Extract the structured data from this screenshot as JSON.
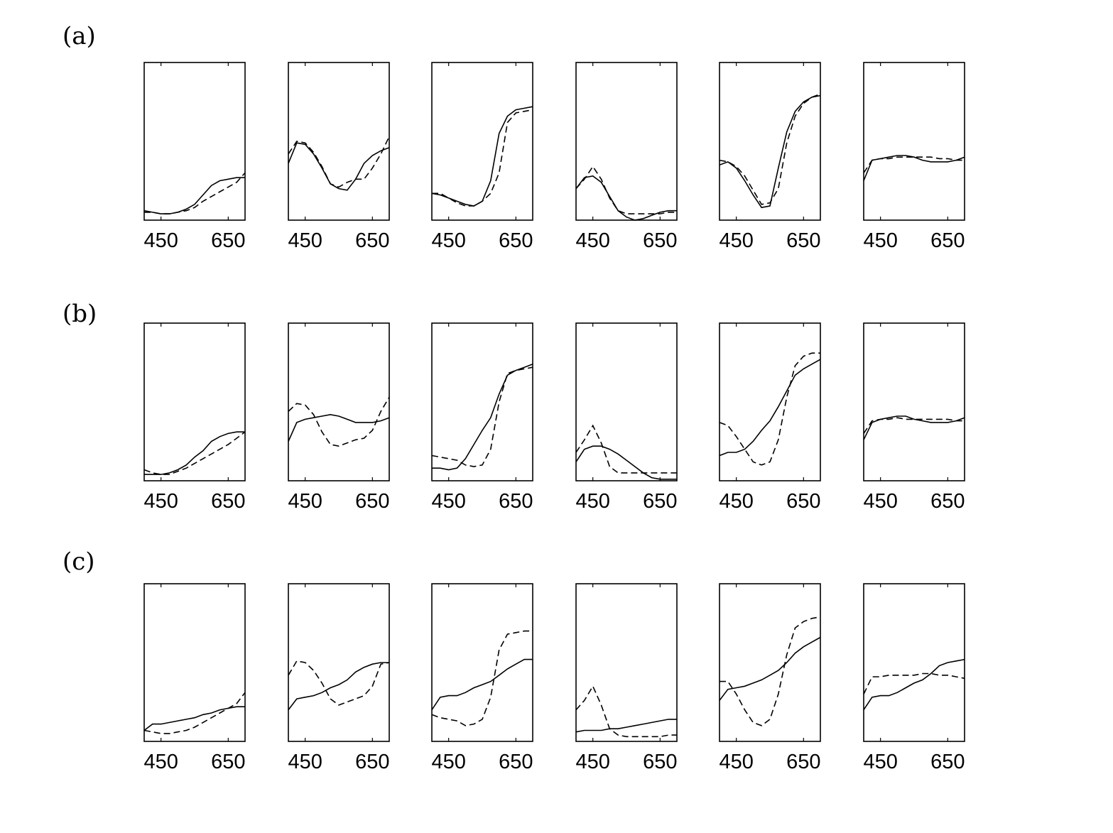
{
  "panel_labels": [
    "(a)",
    "(b)",
    "(c)"
  ],
  "chart_data": [
    {
      "type": "line",
      "x": [
        400,
        425,
        450,
        475,
        500,
        525,
        550,
        575,
        600,
        625,
        650,
        675,
        700
      ],
      "xlim": [
        400,
        700
      ],
      "ylim": [
        0,
        1
      ],
      "xticks": [
        450,
        650
      ],
      "series": [
        {
          "color": "#000",
          "dash": "solid",
          "values": [
            0.06,
            0.05,
            0.04,
            0.04,
            0.05,
            0.07,
            0.1,
            0.16,
            0.22,
            0.25,
            0.26,
            0.27,
            0.27
          ]
        },
        {
          "color": "#000",
          "dash": "dashed",
          "values": [
            0.05,
            0.05,
            0.04,
            0.04,
            0.05,
            0.06,
            0.08,
            0.12,
            0.15,
            0.18,
            0.21,
            0.24,
            0.3
          ]
        }
      ]
    },
    {
      "type": "line",
      "x": [
        400,
        425,
        450,
        475,
        500,
        525,
        550,
        575,
        600,
        625,
        650,
        675,
        700
      ],
      "xlim": [
        400,
        700
      ],
      "ylim": [
        0,
        1
      ],
      "xticks": [
        450,
        650
      ],
      "series": [
        {
          "color": "#000",
          "dash": "solid",
          "values": [
            0.36,
            0.49,
            0.48,
            0.42,
            0.33,
            0.23,
            0.2,
            0.19,
            0.26,
            0.36,
            0.41,
            0.44,
            0.46
          ]
        },
        {
          "color": "#000",
          "dash": "dashed",
          "values": [
            0.42,
            0.5,
            0.49,
            0.43,
            0.34,
            0.23,
            0.21,
            0.24,
            0.26,
            0.26,
            0.33,
            0.42,
            0.53
          ]
        }
      ]
    },
    {
      "type": "line",
      "x": [
        400,
        425,
        450,
        475,
        500,
        525,
        550,
        575,
        600,
        625,
        650,
        675,
        700
      ],
      "xlim": [
        400,
        700
      ],
      "ylim": [
        0,
        1
      ],
      "xticks": [
        450,
        650
      ],
      "series": [
        {
          "color": "#000",
          "dash": "solid",
          "values": [
            0.17,
            0.16,
            0.14,
            0.12,
            0.1,
            0.09,
            0.12,
            0.25,
            0.55,
            0.66,
            0.7,
            0.71,
            0.72
          ]
        },
        {
          "color": "#000",
          "dash": "dashed",
          "values": [
            0.17,
            0.17,
            0.14,
            0.11,
            0.09,
            0.09,
            0.12,
            0.17,
            0.3,
            0.62,
            0.68,
            0.69,
            0.7
          ]
        }
      ]
    },
    {
      "type": "line",
      "x": [
        400,
        425,
        450,
        475,
        500,
        525,
        550,
        575,
        600,
        625,
        650,
        675,
        700
      ],
      "xlim": [
        400,
        700
      ],
      "ylim": [
        0,
        1
      ],
      "xticks": [
        450,
        650
      ],
      "series": [
        {
          "color": "#000",
          "dash": "solid",
          "values": [
            0.2,
            0.27,
            0.28,
            0.24,
            0.15,
            0.06,
            0.02,
            0.0,
            0.01,
            0.03,
            0.05,
            0.06,
            0.06
          ]
        },
        {
          "color": "#000",
          "dash": "dashed",
          "values": [
            0.2,
            0.26,
            0.34,
            0.26,
            0.14,
            0.06,
            0.04,
            0.04,
            0.04,
            0.04,
            0.04,
            0.05,
            0.05
          ]
        }
      ]
    },
    {
      "type": "line",
      "x": [
        400,
        425,
        450,
        475,
        500,
        525,
        550,
        575,
        600,
        625,
        650,
        675,
        700
      ],
      "xlim": [
        400,
        700
      ],
      "ylim": [
        0,
        1
      ],
      "xticks": [
        450,
        650
      ],
      "series": [
        {
          "color": "#000",
          "dash": "solid",
          "values": [
            0.35,
            0.37,
            0.33,
            0.25,
            0.16,
            0.08,
            0.09,
            0.33,
            0.56,
            0.69,
            0.75,
            0.78,
            0.79
          ]
        },
        {
          "color": "#000",
          "dash": "dashed",
          "values": [
            0.38,
            0.37,
            0.34,
            0.28,
            0.19,
            0.1,
            0.11,
            0.2,
            0.49,
            0.66,
            0.74,
            0.78,
            0.8
          ]
        }
      ]
    },
    {
      "type": "line",
      "x": [
        400,
        425,
        450,
        475,
        500,
        525,
        550,
        575,
        600,
        625,
        650,
        675,
        700
      ],
      "xlim": [
        400,
        700
      ],
      "ylim": [
        0,
        1
      ],
      "xticks": [
        450,
        650
      ],
      "series": [
        {
          "color": "#000",
          "dash": "solid",
          "values": [
            0.25,
            0.38,
            0.39,
            0.4,
            0.41,
            0.41,
            0.4,
            0.38,
            0.37,
            0.37,
            0.37,
            0.38,
            0.4
          ]
        },
        {
          "color": "#000",
          "dash": "dashed",
          "values": [
            0.3,
            0.38,
            0.39,
            0.39,
            0.4,
            0.4,
            0.4,
            0.4,
            0.4,
            0.39,
            0.39,
            0.38,
            0.38
          ]
        }
      ]
    },
    {
      "type": "line",
      "x": [
        400,
        425,
        450,
        475,
        500,
        525,
        550,
        575,
        600,
        625,
        650,
        675,
        700
      ],
      "xlim": [
        400,
        700
      ],
      "ylim": [
        0,
        1
      ],
      "xticks": [
        450,
        650
      ],
      "series": [
        {
          "color": "#000",
          "dash": "solid",
          "values": [
            0.04,
            0.04,
            0.04,
            0.05,
            0.07,
            0.1,
            0.15,
            0.19,
            0.25,
            0.28,
            0.3,
            0.31,
            0.31
          ]
        },
        {
          "color": "#000",
          "dash": "dashed",
          "values": [
            0.07,
            0.05,
            0.04,
            0.04,
            0.06,
            0.08,
            0.11,
            0.14,
            0.17,
            0.2,
            0.23,
            0.27,
            0.31
          ]
        }
      ]
    },
    {
      "type": "line",
      "x": [
        400,
        425,
        450,
        475,
        500,
        525,
        550,
        575,
        600,
        625,
        650,
        675,
        700
      ],
      "xlim": [
        400,
        700
      ],
      "ylim": [
        0,
        1
      ],
      "xticks": [
        450,
        650
      ],
      "series": [
        {
          "color": "#000",
          "dash": "solid",
          "values": [
            0.25,
            0.37,
            0.39,
            0.4,
            0.41,
            0.42,
            0.41,
            0.39,
            0.37,
            0.37,
            0.37,
            0.38,
            0.4
          ]
        },
        {
          "color": "#000",
          "dash": "dashed",
          "values": [
            0.44,
            0.49,
            0.48,
            0.42,
            0.31,
            0.23,
            0.22,
            0.24,
            0.26,
            0.27,
            0.32,
            0.44,
            0.53
          ]
        }
      ]
    },
    {
      "type": "line",
      "x": [
        400,
        425,
        450,
        475,
        500,
        525,
        550,
        575,
        600,
        625,
        650,
        675,
        700
      ],
      "xlim": [
        400,
        700
      ],
      "ylim": [
        0,
        1
      ],
      "xticks": [
        450,
        650
      ],
      "series": [
        {
          "color": "#000",
          "dash": "solid",
          "values": [
            0.08,
            0.08,
            0.07,
            0.08,
            0.14,
            0.23,
            0.32,
            0.4,
            0.55,
            0.67,
            0.7,
            0.72,
            0.74
          ]
        },
        {
          "color": "#000",
          "dash": "dashed",
          "values": [
            0.16,
            0.15,
            0.14,
            0.13,
            0.1,
            0.09,
            0.1,
            0.2,
            0.5,
            0.68,
            0.7,
            0.71,
            0.72
          ]
        }
      ]
    },
    {
      "type": "line",
      "x": [
        400,
        425,
        450,
        475,
        500,
        525,
        550,
        575,
        600,
        625,
        650,
        675,
        700
      ],
      "xlim": [
        400,
        700
      ],
      "ylim": [
        0,
        1
      ],
      "xticks": [
        450,
        650
      ],
      "series": [
        {
          "color": "#000",
          "dash": "solid",
          "values": [
            0.12,
            0.2,
            0.22,
            0.22,
            0.2,
            0.17,
            0.13,
            0.09,
            0.05,
            0.02,
            0.01,
            0.01,
            0.01
          ]
        },
        {
          "color": "#000",
          "dash": "dashed",
          "values": [
            0.18,
            0.26,
            0.35,
            0.24,
            0.09,
            0.05,
            0.05,
            0.05,
            0.05,
            0.05,
            0.05,
            0.05,
            0.05
          ]
        }
      ]
    },
    {
      "type": "line",
      "x": [
        400,
        425,
        450,
        475,
        500,
        525,
        550,
        575,
        600,
        625,
        650,
        675,
        700
      ],
      "xlim": [
        400,
        700
      ],
      "ylim": [
        0,
        1
      ],
      "xticks": [
        450,
        650
      ],
      "series": [
        {
          "color": "#000",
          "dash": "solid",
          "values": [
            0.16,
            0.18,
            0.18,
            0.2,
            0.25,
            0.32,
            0.38,
            0.47,
            0.57,
            0.67,
            0.71,
            0.74,
            0.77
          ]
        },
        {
          "color": "#000",
          "dash": "dashed",
          "values": [
            0.37,
            0.35,
            0.28,
            0.2,
            0.12,
            0.1,
            0.12,
            0.26,
            0.53,
            0.73,
            0.79,
            0.81,
            0.81
          ]
        }
      ]
    },
    {
      "type": "line",
      "x": [
        400,
        425,
        450,
        475,
        500,
        525,
        550,
        575,
        600,
        625,
        650,
        675,
        700
      ],
      "xlim": [
        400,
        700
      ],
      "ylim": [
        0,
        1
      ],
      "xticks": [
        450,
        650
      ],
      "series": [
        {
          "color": "#000",
          "dash": "solid",
          "values": [
            0.26,
            0.37,
            0.39,
            0.4,
            0.41,
            0.41,
            0.39,
            0.38,
            0.37,
            0.37,
            0.37,
            0.38,
            0.4
          ]
        },
        {
          "color": "#000",
          "dash": "dashed",
          "values": [
            0.3,
            0.38,
            0.39,
            0.39,
            0.4,
            0.39,
            0.39,
            0.39,
            0.39,
            0.39,
            0.39,
            0.38,
            0.38
          ]
        }
      ]
    },
    {
      "type": "line",
      "x": [
        400,
        425,
        450,
        475,
        500,
        525,
        550,
        575,
        600,
        625,
        650,
        675,
        700
      ],
      "xlim": [
        400,
        700
      ],
      "ylim": [
        0,
        1
      ],
      "xticks": [
        450,
        650
      ],
      "series": [
        {
          "color": "#000",
          "dash": "solid",
          "values": [
            0.07,
            0.11,
            0.11,
            0.12,
            0.13,
            0.14,
            0.15,
            0.17,
            0.18,
            0.2,
            0.21,
            0.22,
            0.22
          ]
        },
        {
          "color": "#000",
          "dash": "dashed",
          "values": [
            0.07,
            0.06,
            0.05,
            0.05,
            0.06,
            0.07,
            0.09,
            0.12,
            0.15,
            0.18,
            0.21,
            0.24,
            0.31
          ]
        }
      ]
    },
    {
      "type": "line",
      "x": [
        400,
        425,
        450,
        475,
        500,
        525,
        550,
        575,
        600,
        625,
        650,
        675,
        700
      ],
      "xlim": [
        400,
        700
      ],
      "ylim": [
        0,
        1
      ],
      "xticks": [
        450,
        650
      ],
      "series": [
        {
          "color": "#000",
          "dash": "solid",
          "values": [
            0.2,
            0.27,
            0.28,
            0.29,
            0.31,
            0.34,
            0.36,
            0.39,
            0.44,
            0.47,
            0.49,
            0.5,
            0.5
          ]
        },
        {
          "color": "#000",
          "dash": "dashed",
          "values": [
            0.42,
            0.51,
            0.5,
            0.45,
            0.37,
            0.27,
            0.23,
            0.25,
            0.27,
            0.29,
            0.35,
            0.49,
            0.5
          ]
        }
      ]
    },
    {
      "type": "line",
      "x": [
        400,
        425,
        450,
        475,
        500,
        525,
        550,
        575,
        600,
        625,
        650,
        675,
        700
      ],
      "xlim": [
        400,
        700
      ],
      "ylim": [
        0,
        1
      ],
      "xticks": [
        450,
        650
      ],
      "series": [
        {
          "color": "#000",
          "dash": "solid",
          "values": [
            0.2,
            0.28,
            0.29,
            0.29,
            0.31,
            0.34,
            0.36,
            0.38,
            0.42,
            0.46,
            0.49,
            0.52,
            0.52
          ]
        },
        {
          "color": "#000",
          "dash": "dashed",
          "values": [
            0.17,
            0.15,
            0.14,
            0.13,
            0.1,
            0.11,
            0.14,
            0.28,
            0.58,
            0.68,
            0.69,
            0.7,
            0.7
          ]
        }
      ]
    },
    {
      "type": "line",
      "x": [
        400,
        425,
        450,
        475,
        500,
        525,
        550,
        575,
        600,
        625,
        650,
        675,
        700
      ],
      "xlim": [
        400,
        700
      ],
      "ylim": [
        0,
        1
      ],
      "xticks": [
        450,
        650
      ],
      "series": [
        {
          "color": "#000",
          "dash": "solid",
          "values": [
            0.06,
            0.07,
            0.07,
            0.07,
            0.08,
            0.08,
            0.09,
            0.1,
            0.11,
            0.12,
            0.13,
            0.14,
            0.14
          ]
        },
        {
          "color": "#000",
          "dash": "dashed",
          "values": [
            0.2,
            0.26,
            0.35,
            0.23,
            0.08,
            0.04,
            0.03,
            0.03,
            0.03,
            0.03,
            0.03,
            0.04,
            0.04
          ]
        }
      ]
    },
    {
      "type": "line",
      "x": [
        400,
        425,
        450,
        475,
        500,
        525,
        550,
        575,
        600,
        625,
        650,
        675,
        700
      ],
      "xlim": [
        400,
        700
      ],
      "ylim": [
        0,
        1
      ],
      "xticks": [
        450,
        650
      ],
      "series": [
        {
          "color": "#000",
          "dash": "solid",
          "values": [
            0.26,
            0.33,
            0.34,
            0.35,
            0.37,
            0.39,
            0.42,
            0.45,
            0.5,
            0.56,
            0.6,
            0.63,
            0.66
          ]
        },
        {
          "color": "#000",
          "dash": "dashed",
          "values": [
            0.38,
            0.38,
            0.3,
            0.2,
            0.12,
            0.1,
            0.14,
            0.3,
            0.55,
            0.72,
            0.76,
            0.78,
            0.79
          ]
        }
      ]
    },
    {
      "type": "line",
      "x": [
        400,
        425,
        450,
        475,
        500,
        525,
        550,
        575,
        600,
        625,
        650,
        675,
        700
      ],
      "xlim": [
        400,
        700
      ],
      "ylim": [
        0,
        1
      ],
      "xticks": [
        450,
        650
      ],
      "series": [
        {
          "color": "#000",
          "dash": "solid",
          "values": [
            0.2,
            0.28,
            0.29,
            0.29,
            0.31,
            0.34,
            0.37,
            0.39,
            0.43,
            0.48,
            0.5,
            0.51,
            0.52
          ]
        },
        {
          "color": "#000",
          "dash": "dashed",
          "values": [
            0.3,
            0.41,
            0.41,
            0.42,
            0.42,
            0.42,
            0.42,
            0.43,
            0.43,
            0.42,
            0.42,
            0.41,
            0.4
          ]
        }
      ]
    }
  ]
}
